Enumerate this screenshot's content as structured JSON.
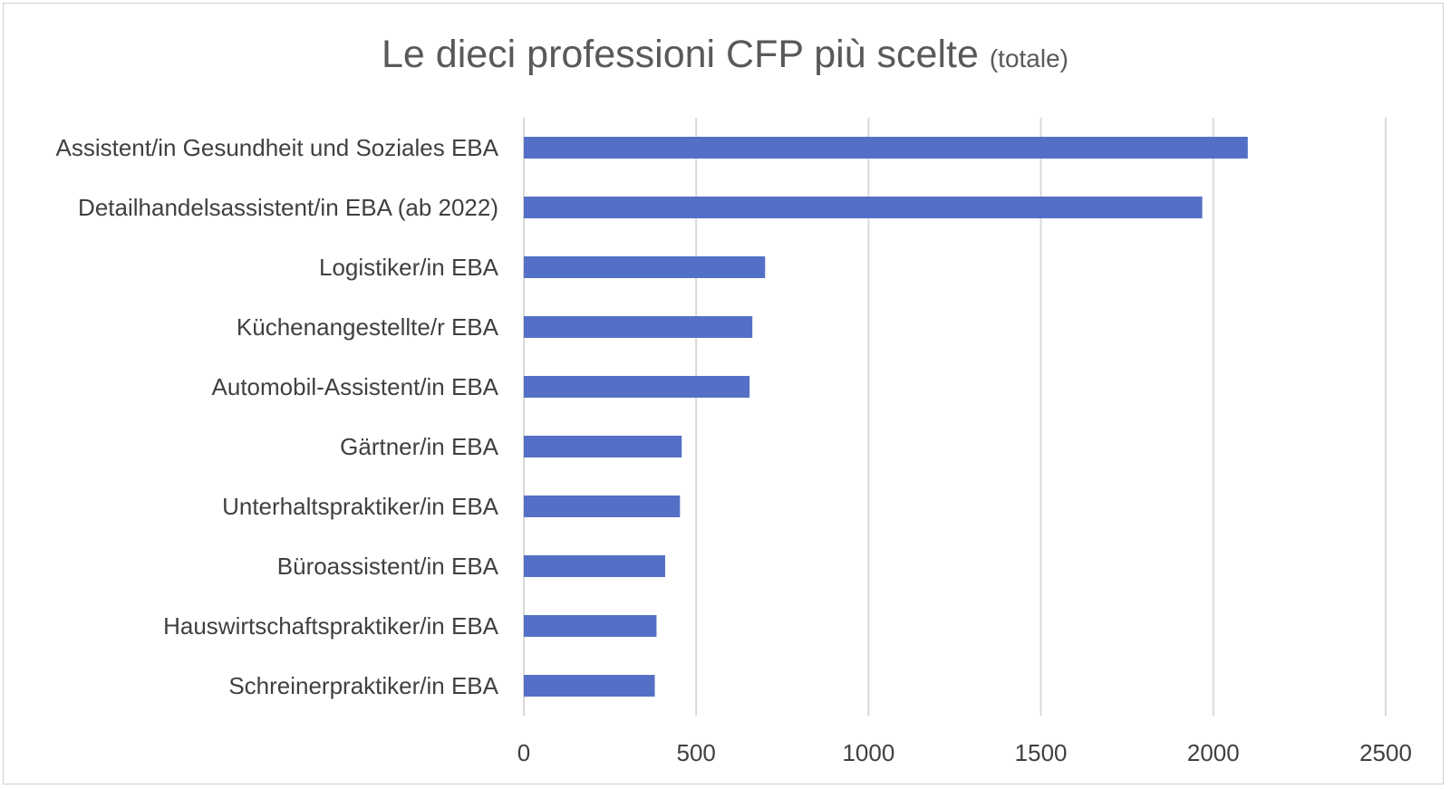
{
  "chart_data": {
    "type": "bar",
    "orientation": "horizontal",
    "title": "Le dieci professioni CFP più scelte",
    "subtitle": "(totale)",
    "categories": [
      "Assistent/in Gesundheit und Soziales EBA",
      "Detailhandelsassistent/in EBA (ab 2022)",
      "Logistiker/in EBA",
      "Küchenangestellte/r EBA",
      "Automobil-Assistent/in EBA",
      "Gärtner/in EBA",
      "Unterhaltspraktiker/in EBA",
      "Büroassistent/in EBA",
      "Hauswirtschaftspraktiker/in EBA",
      "Schreinerpraktiker/in EBA"
    ],
    "values": [
      2100,
      1968,
      700,
      663,
      655,
      458,
      453,
      410,
      385,
      380
    ],
    "xlim": [
      0,
      2500
    ],
    "xticks": [
      "0",
      "500",
      "1000",
      "1500",
      "2000",
      "2500"
    ],
    "grid": "vertical",
    "legend": "none",
    "colors": {
      "bar": "#5470c6",
      "grid": "#d9d9d9",
      "text": "#404040",
      "title": "#595959"
    }
  }
}
